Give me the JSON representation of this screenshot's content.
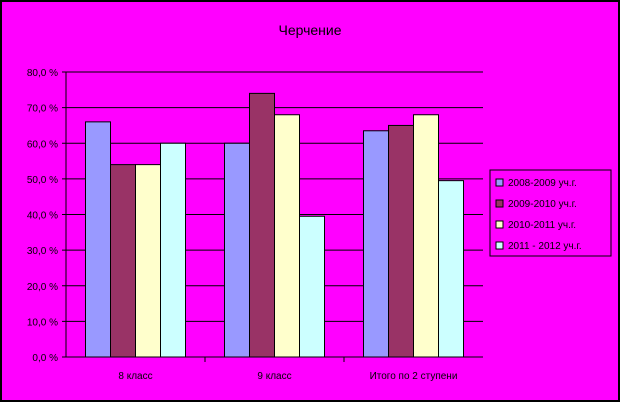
{
  "chart_data": {
    "type": "bar",
    "title": "Черчение",
    "categories": [
      "8 класс",
      "9 класс",
      "Итого по 2 ступени"
    ],
    "y_ticks": [
      "0,0 %",
      "10,0 %",
      "20,0 %",
      "30,0 %",
      "40,0 %",
      "50,0 %",
      "60,0 %",
      "70,0 %",
      "80,0 %"
    ],
    "ylim": [
      0,
      80
    ],
    "grid": true,
    "legend_position": "right",
    "series": [
      {
        "name": "2008-2009 уч.г.",
        "color": "#9999FF",
        "values": [
          66,
          60,
          63.5
        ]
      },
      {
        "name": "2009-2010 уч.г.",
        "color": "#993366",
        "values": [
          54,
          74,
          65
        ]
      },
      {
        "name": "2010-2011 уч.г.",
        "color": "#FFFFCC",
        "values": [
          54,
          68,
          68
        ]
      },
      {
        "name": "2011 - 2012 уч.г.",
        "color": "#CCFFFF",
        "values": [
          60,
          39.5,
          49.5
        ]
      }
    ]
  },
  "colors": {
    "background": "#FF00FF",
    "frame": "#000000",
    "gridline": "#000000"
  }
}
